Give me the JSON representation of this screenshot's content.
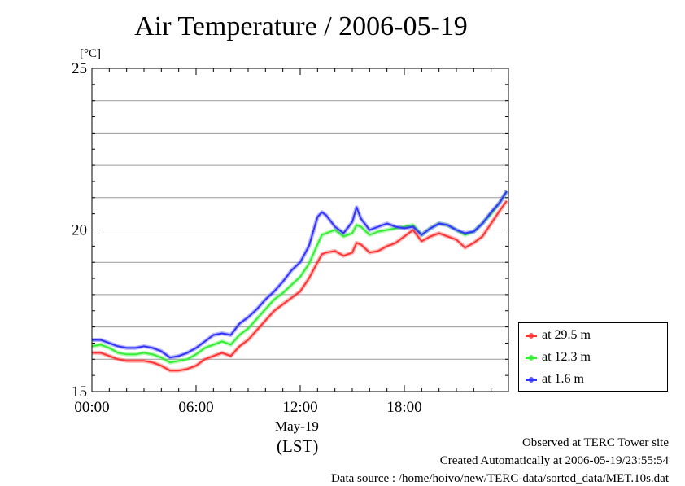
{
  "chart_data": {
    "type": "line",
    "title": "Air Temperature / 2006-05-19",
    "ylabel": "[°C]",
    "xlabel": "(LST)",
    "date_label": "May-19",
    "ylim": [
      15,
      25
    ],
    "y_ticks": [
      15,
      20,
      25
    ],
    "y_tick_labels": [
      "15",
      "20",
      "25"
    ],
    "xlim": [
      0,
      24
    ],
    "x_ticks": [
      0,
      6,
      12,
      18
    ],
    "x_tick_labels": [
      "00:00",
      "06:00",
      "12:00",
      "18:00"
    ],
    "grid": true,
    "legend_position": "right-bottom",
    "series": [
      {
        "name": "at 29.5 m",
        "color": "#ff3333",
        "x": [
          0,
          0.5,
          1,
          1.5,
          2,
          2.5,
          3,
          3.5,
          4,
          4.5,
          5,
          5.5,
          6,
          6.5,
          7,
          7.5,
          8,
          8.5,
          9,
          9.5,
          10,
          10.5,
          11,
          11.5,
          12,
          12.5,
          13,
          13.25,
          13.5,
          14,
          14.5,
          15,
          15.25,
          15.5,
          16,
          16.5,
          17,
          17.5,
          18,
          18.5,
          19,
          19.5,
          20,
          20.5,
          21,
          21.5,
          22,
          22.5,
          23,
          23.5,
          23.9
        ],
        "values": [
          16.2,
          16.2,
          16.1,
          16.0,
          15.95,
          15.95,
          15.95,
          15.9,
          15.8,
          15.65,
          15.65,
          15.7,
          15.8,
          16.0,
          16.1,
          16.2,
          16.1,
          16.4,
          16.6,
          16.9,
          17.2,
          17.5,
          17.7,
          17.9,
          18.1,
          18.5,
          19.0,
          19.25,
          19.3,
          19.35,
          19.2,
          19.3,
          19.6,
          19.55,
          19.3,
          19.35,
          19.5,
          19.6,
          19.8,
          20.0,
          19.65,
          19.8,
          19.9,
          19.8,
          19.7,
          19.45,
          19.6,
          19.8,
          20.2,
          20.6,
          20.9
        ]
      },
      {
        "name": "at 12.3 m",
        "color": "#33ee33",
        "x": [
          0,
          0.5,
          1,
          1.5,
          2,
          2.5,
          3,
          3.5,
          4,
          4.5,
          5,
          5.5,
          6,
          6.5,
          7,
          7.5,
          8,
          8.5,
          9,
          9.5,
          10,
          10.5,
          11,
          11.5,
          12,
          12.5,
          13,
          13.25,
          13.5,
          14,
          14.5,
          15,
          15.25,
          15.5,
          16,
          16.5,
          17,
          17.5,
          18,
          18.5,
          19,
          19.5,
          20,
          20.5,
          21,
          21.5,
          22,
          22.5,
          23,
          23.5,
          23.9
        ],
        "values": [
          16.4,
          16.45,
          16.35,
          16.2,
          16.15,
          16.15,
          16.2,
          16.15,
          16.05,
          15.9,
          15.95,
          16.0,
          16.15,
          16.35,
          16.45,
          16.55,
          16.45,
          16.75,
          16.95,
          17.25,
          17.55,
          17.85,
          18.05,
          18.3,
          18.55,
          18.95,
          19.55,
          19.85,
          19.9,
          20.0,
          19.8,
          19.9,
          20.15,
          20.1,
          19.85,
          19.95,
          20.0,
          20.05,
          20.1,
          20.15,
          19.85,
          20.05,
          20.2,
          20.15,
          20.0,
          19.85,
          19.95,
          20.2,
          20.5,
          20.85,
          21.2
        ]
      },
      {
        "name": "at 1.6 m",
        "color": "#3333ff",
        "x": [
          0,
          0.5,
          1,
          1.5,
          2,
          2.5,
          3,
          3.5,
          4,
          4.5,
          5,
          5.5,
          6,
          6.5,
          7,
          7.5,
          8,
          8.5,
          9,
          9.5,
          10,
          10.5,
          11,
          11.5,
          12,
          12.5,
          13,
          13.25,
          13.5,
          14,
          14.5,
          15,
          15.25,
          15.5,
          16,
          16.5,
          17,
          17.5,
          18,
          18.5,
          19,
          19.5,
          20,
          20.5,
          21,
          21.5,
          22,
          22.5,
          23,
          23.5,
          23.9
        ],
        "values": [
          16.6,
          16.6,
          16.5,
          16.4,
          16.35,
          16.35,
          16.4,
          16.35,
          16.25,
          16.05,
          16.1,
          16.2,
          16.35,
          16.55,
          16.75,
          16.8,
          16.75,
          17.1,
          17.3,
          17.55,
          17.85,
          18.1,
          18.4,
          18.75,
          19.0,
          19.5,
          20.4,
          20.55,
          20.45,
          20.1,
          19.9,
          20.25,
          20.7,
          20.35,
          20.0,
          20.1,
          20.2,
          20.1,
          20.05,
          20.1,
          19.85,
          20.05,
          20.2,
          20.15,
          20.0,
          19.9,
          19.95,
          20.2,
          20.55,
          20.85,
          21.2
        ]
      }
    ]
  },
  "footer": {
    "line1": "Observed at TERC Tower site",
    "line2": "Created Automatically at 2006-05-19/23:55:54",
    "line3": "Data source : /home/hoivo/new/TERC-data/sorted_data/MET.10s.dat"
  }
}
